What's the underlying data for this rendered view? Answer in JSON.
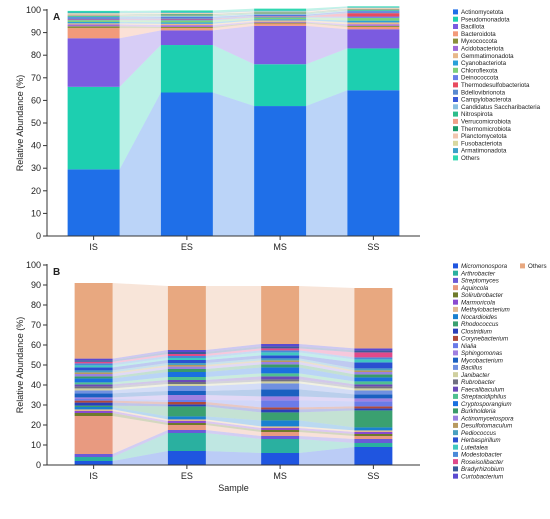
{
  "chart_data": [
    {
      "panel": "A",
      "type": "bar",
      "stacked": true,
      "flows_between_bars": true,
      "ylabel": "Relative Abundance (%)",
      "xlabel": "",
      "ylim": [
        0,
        100
      ],
      "yticks": [
        0,
        10,
        20,
        30,
        40,
        50,
        60,
        70,
        80,
        90,
        100
      ],
      "categories": [
        "IS",
        "ES",
        "MS",
        "SS"
      ],
      "legend_position": "right",
      "series": [
        {
          "name": "Actinomycetota",
          "color": "#1f6fe8",
          "values": [
            29.5,
            63.5,
            57.5,
            64.5
          ]
        },
        {
          "name": "Pseudomonadota",
          "color": "#1dcfb0",
          "values": [
            36.5,
            21.0,
            18.5,
            18.5
          ]
        },
        {
          "name": "Bacillota",
          "color": "#7b5be0",
          "values": [
            21.5,
            6.5,
            17.0,
            8.5
          ]
        },
        {
          "name": "Bacteroidota",
          "color": "#f29a7a",
          "values": [
            4.5,
            1.0,
            1.0,
            1.0
          ]
        },
        {
          "name": "Myxococcota",
          "color": "#8a8f3a",
          "values": [
            0.8,
            0.5,
            0.4,
            0.5
          ]
        },
        {
          "name": "Acidobacteriota",
          "color": "#a06ad8",
          "values": [
            0.8,
            0.8,
            0.4,
            0.7
          ]
        },
        {
          "name": "Gemmatimonadota",
          "color": "#e8b88a",
          "values": [
            0.5,
            0.6,
            0.6,
            0.8
          ]
        },
        {
          "name": "Cyanobacteriota",
          "color": "#2aa0d8",
          "values": [
            0.6,
            0.6,
            0.5,
            0.8
          ]
        },
        {
          "name": "Chloroflexota",
          "color": "#7dd07a",
          "values": [
            0.8,
            0.9,
            0.8,
            1.2
          ]
        },
        {
          "name": "Deinococcota",
          "color": "#6a7fe8",
          "values": [
            0.3,
            0.4,
            0.3,
            0.6
          ]
        },
        {
          "name": "Thermodesulfobacteriota",
          "color": "#e84a5f",
          "values": [
            0.2,
            0.3,
            0.2,
            1.5
          ]
        },
        {
          "name": "Bdellovibrionota",
          "color": "#5a8ad0",
          "values": [
            0.4,
            0.5,
            0.3,
            0.4
          ]
        },
        {
          "name": "Campylobacterota",
          "color": "#3a5ad8",
          "values": [
            0.3,
            0.3,
            0.4,
            0.4
          ]
        },
        {
          "name": "Candidatus Saccharibacteria",
          "color": "#8abfe0",
          "values": [
            0.3,
            0.4,
            0.3,
            0.3
          ]
        },
        {
          "name": "Nitrospirota",
          "color": "#2dbd8a",
          "values": [
            0.4,
            0.3,
            0.3,
            0.3
          ]
        },
        {
          "name": "Verrucomicrobiota",
          "color": "#f0a08a",
          "values": [
            0.3,
            0.3,
            0.2,
            0.3
          ]
        },
        {
          "name": "Thermomicrobiota",
          "color": "#1a9a6a",
          "values": [
            0.2,
            0.3,
            0.2,
            0.2
          ]
        },
        {
          "name": "Planctomycetota",
          "color": "#f2c6b0",
          "values": [
            0.4,
            0.3,
            0.3,
            0.3
          ]
        },
        {
          "name": "Fusobacteriota",
          "color": "#d8d8a0",
          "values": [
            0.3,
            0.2,
            0.2,
            0.2
          ]
        },
        {
          "name": "Armatimonadota",
          "color": "#3aa0c8",
          "values": [
            0.3,
            0.3,
            0.3,
            0.2
          ]
        },
        {
          "name": "Others",
          "color": "#30d8b0",
          "values": [
            0.7,
            0.8,
            0.9,
            0.4
          ]
        }
      ]
    },
    {
      "panel": "B",
      "type": "bar",
      "stacked": true,
      "flows_between_bars": true,
      "ylabel": "Relative Abundance (%)",
      "xlabel": "Sample",
      "ylim": [
        0,
        100
      ],
      "yticks": [
        0,
        10,
        20,
        30,
        40,
        50,
        60,
        70,
        80,
        90,
        100
      ],
      "categories": [
        "IS",
        "ES",
        "MS",
        "SS"
      ],
      "legend_position": "right",
      "series": [
        {
          "name": "Micromonospora",
          "color": "#1f55e0",
          "values": [
            2.0,
            7.0,
            6.0,
            9.0
          ]
        },
        {
          "name": "Arthrobacter",
          "color": "#2ab0a0",
          "values": [
            2.0,
            9.0,
            7.0,
            2.0
          ]
        },
        {
          "name": "Streptomyces",
          "color": "#6a5ad8",
          "values": [
            1.5,
            1.5,
            1.5,
            2.0
          ]
        },
        {
          "name": "Aquincola",
          "color": "#e89a80",
          "values": [
            19.0,
            2.5,
            2.0,
            1.5
          ]
        },
        {
          "name": "Solirubrobacter",
          "color": "#6f7a2a",
          "values": [
            1.5,
            1.0,
            1.0,
            1.0
          ]
        },
        {
          "name": "Marmoricola",
          "color": "#8a4ad0",
          "values": [
            1.0,
            1.0,
            1.0,
            1.0
          ]
        },
        {
          "name": "Methylobacterium",
          "color": "#e0b890",
          "values": [
            0.8,
            0.8,
            0.8,
            0.8
          ]
        },
        {
          "name": "Nocardioides",
          "color": "#1a80d0",
          "values": [
            1.2,
            1.5,
            3.0,
            1.5
          ]
        },
        {
          "name": "Rhodococcus",
          "color": "#3aa070",
          "values": [
            0.7,
            5.0,
            4.0,
            8.5
          ]
        },
        {
          "name": "Clostridium",
          "color": "#2a40b8",
          "values": [
            1.5,
            1.0,
            1.5,
            1.0
          ]
        },
        {
          "name": "Corynebacterium",
          "color": "#b04a3a",
          "values": [
            1.0,
            1.2,
            1.0,
            1.0
          ]
        },
        {
          "name": "Nialia",
          "color": "#6a7be8",
          "values": [
            0.8,
            1.0,
            3.5,
            2.5
          ]
        },
        {
          "name": "Sphingomonas",
          "color": "#a080e0",
          "values": [
            0.8,
            2.5,
            2.0,
            1.5
          ]
        },
        {
          "name": "Mycobacterium",
          "color": "#1a60c0",
          "values": [
            2.0,
            2.0,
            3.5,
            2.0
          ]
        },
        {
          "name": "Bacillus",
          "color": "#7090e0",
          "values": [
            1.5,
            2.5,
            3.0,
            2.0
          ]
        },
        {
          "name": "Janibacter",
          "color": "#d0d0a0",
          "values": [
            1.0,
            1.0,
            1.0,
            1.0
          ]
        },
        {
          "name": "Rubrobacter",
          "color": "#707080",
          "values": [
            1.0,
            1.0,
            1.0,
            1.0
          ]
        },
        {
          "name": "Faecalibaculum",
          "color": "#6a4ab8",
          "values": [
            1.0,
            1.0,
            1.5,
            1.0
          ]
        },
        {
          "name": "Streptacidiphilus",
          "color": "#50c090",
          "values": [
            1.0,
            1.5,
            1.5,
            1.5
          ]
        },
        {
          "name": "Cryptosporangium",
          "color": "#1a70e0",
          "values": [
            2.0,
            2.5,
            3.0,
            2.0
          ]
        },
        {
          "name": "Burkholderia",
          "color": "#3a9a6a",
          "values": [
            1.0,
            1.5,
            1.5,
            1.5
          ]
        },
        {
          "name": "Actinomycetospora",
          "color": "#9a80e0",
          "values": [
            1.2,
            1.2,
            1.2,
            1.2
          ]
        },
        {
          "name": "Desulfotomaculum",
          "color": "#b89a60",
          "values": [
            0.8,
            0.8,
            0.8,
            0.8
          ]
        },
        {
          "name": "Pediococcus",
          "color": "#4aa0c0",
          "values": [
            1.0,
            1.0,
            1.0,
            1.0
          ]
        },
        {
          "name": "Herbaspirillum",
          "color": "#2a50d0",
          "values": [
            1.5,
            1.5,
            1.5,
            3.0
          ]
        },
        {
          "name": "Luteitalea",
          "color": "#40c8c0",
          "values": [
            1.0,
            1.0,
            1.5,
            1.5
          ]
        },
        {
          "name": "Modestobacter",
          "color": "#4a8ad8",
          "values": [
            1.0,
            1.0,
            1.0,
            1.0
          ]
        },
        {
          "name": "Roseisolibacter",
          "color": "#e04a8a",
          "values": [
            0.8,
            1.0,
            1.0,
            2.5
          ]
        },
        {
          "name": "Bradyrhizobium",
          "color": "#3a5a9a",
          "values": [
            0.8,
            1.0,
            1.0,
            1.0
          ]
        },
        {
          "name": "Curtobacterium",
          "color": "#5a4ad0",
          "values": [
            0.8,
            1.0,
            1.2,
            1.0
          ]
        },
        {
          "name": "Others",
          "color": "#e8a880",
          "values": [
            37.8,
            32.0,
            29.0,
            30.2
          ]
        }
      ]
    }
  ]
}
